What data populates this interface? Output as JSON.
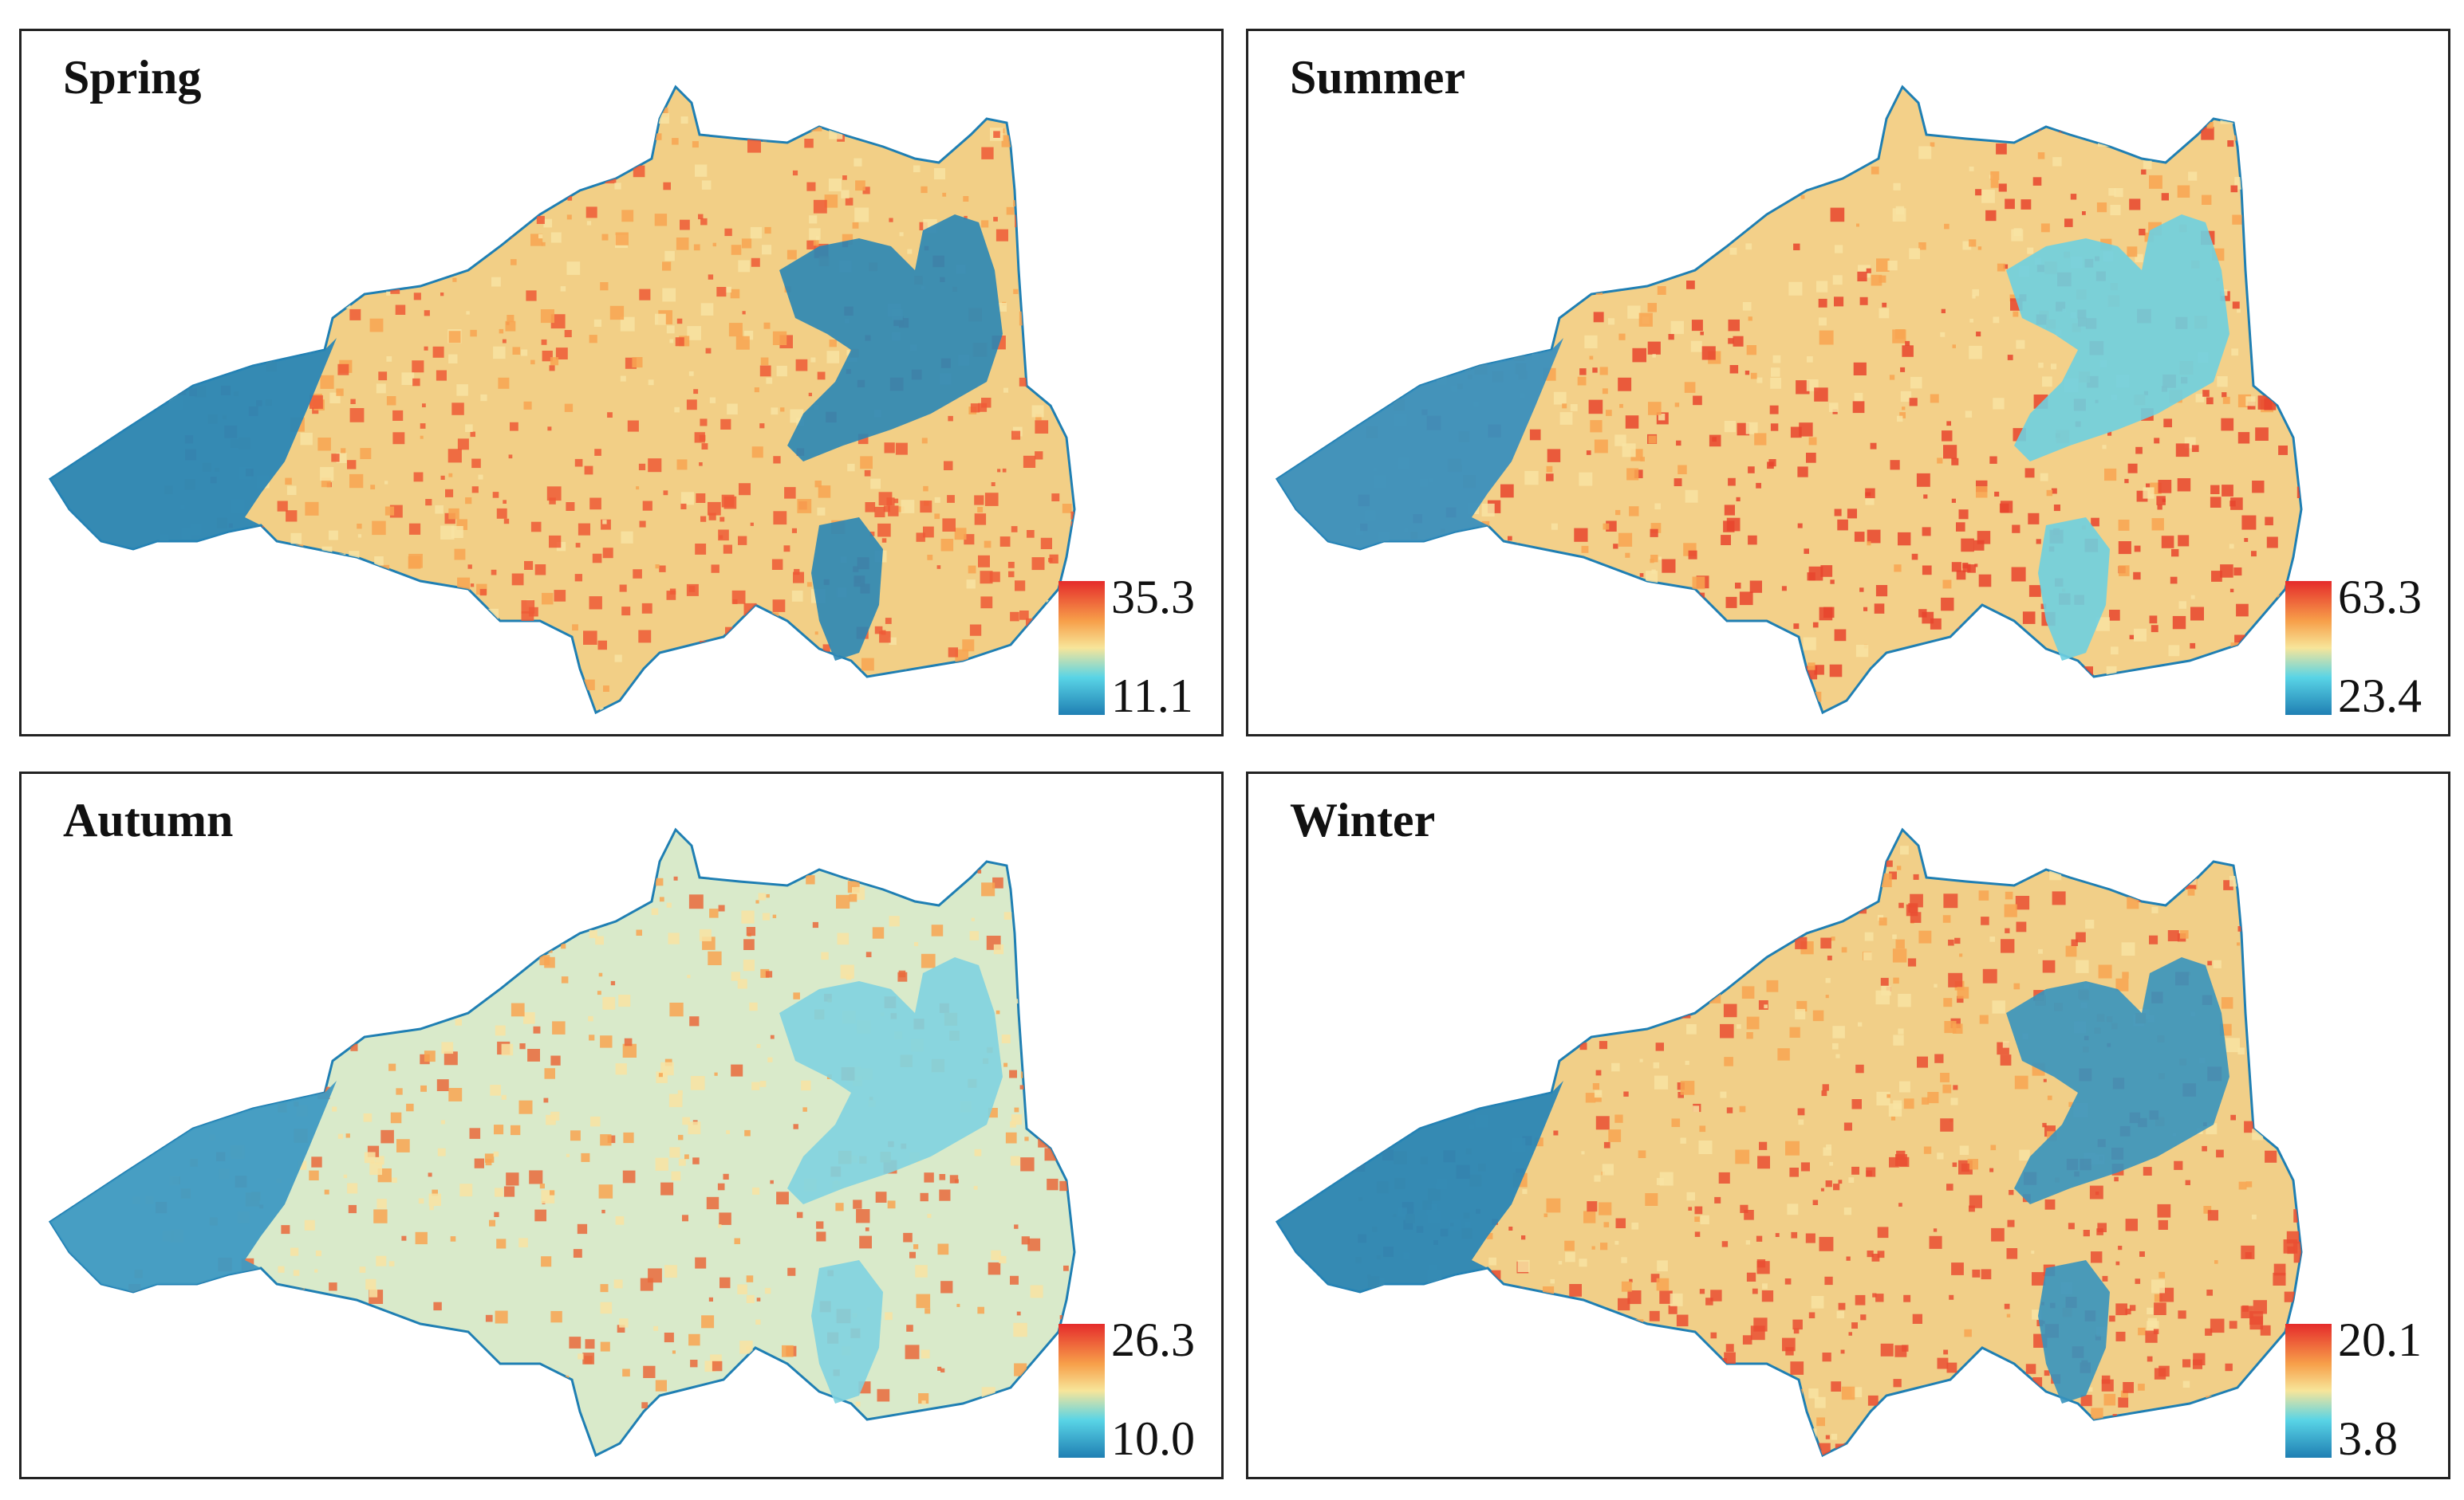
{
  "panels": [
    {
      "title": "Spring",
      "legend": {
        "max": "35.3",
        "min": "11.1"
      }
    },
    {
      "title": "Summer",
      "legend": {
        "max": "63.3",
        "min": "23.4"
      }
    },
    {
      "title": "Autumn",
      "legend": {
        "max": "26.3",
        "min": "10.0"
      }
    },
    {
      "title": "Winter",
      "legend": {
        "max": "20.1",
        "min": "3.8"
      }
    }
  ],
  "colors": {
    "ramp_low": "#1f7fb3",
    "ramp_lowmid": "#59d4e6",
    "ramp_mid": "#f7e59a",
    "ramp_high": "#f7a04a",
    "ramp_max": "#e52b2b",
    "water": "#2a86b5",
    "land_mid": "#f2d891",
    "hot": "#ef6a3a"
  },
  "legend_icon": "color-ramp-icon"
}
